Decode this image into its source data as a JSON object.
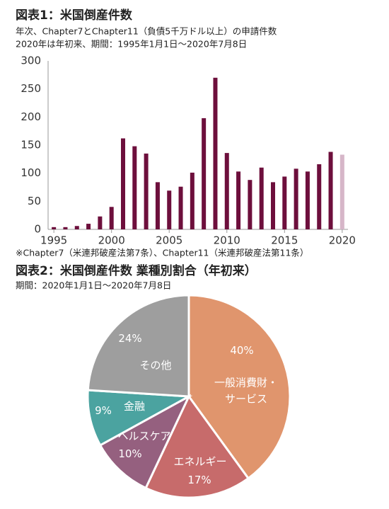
{
  "chart_data": [
    {
      "type": "bar",
      "title": "図表1：米国倒産件数",
      "subtitle": [
        "年次、Chapter7とChapter11（負債5千万ドル以上）の申請件数",
        "2020年は年初来、期間：1995年1月1日～2020年7月8日"
      ],
      "note": "※Chapter7（米連邦破産法第7条）、Chapter11（米連邦破産法第11条）",
      "x": [
        1995,
        1996,
        1997,
        1998,
        1999,
        2000,
        2001,
        2002,
        2003,
        2004,
        2005,
        2006,
        2007,
        2008,
        2009,
        2010,
        2011,
        2012,
        2013,
        2014,
        2015,
        2016,
        2017,
        2018,
        2019,
        2020
      ],
      "values": [
        4,
        4,
        6,
        10,
        23,
        40,
        162,
        148,
        135,
        84,
        69,
        76,
        101,
        198,
        270,
        136,
        103,
        88,
        110,
        84,
        94,
        108,
        103,
        116,
        138,
        133
      ],
      "colors": [
        "#6d0f3c",
        "#6d0f3c",
        "#6d0f3c",
        "#6d0f3c",
        "#6d0f3c",
        "#6d0f3c",
        "#6d0f3c",
        "#6d0f3c",
        "#6d0f3c",
        "#6d0f3c",
        "#6d0f3c",
        "#6d0f3c",
        "#6d0f3c",
        "#6d0f3c",
        "#6d0f3c",
        "#6d0f3c",
        "#6d0f3c",
        "#6d0f3c",
        "#6d0f3c",
        "#6d0f3c",
        "#6d0f3c",
        "#6d0f3c",
        "#6d0f3c",
        "#6d0f3c",
        "#6d0f3c",
        "#d6b6c8"
      ],
      "xlim": [
        1994.5,
        2020.5
      ],
      "xticks": [
        1995,
        2000,
        2005,
        2010,
        2015,
        2020
      ],
      "ylim": [
        0,
        300
      ],
      "yticks": [
        0,
        50,
        100,
        150,
        200,
        250,
        300
      ],
      "grid": false
    },
    {
      "type": "pie",
      "title": "図表2：米国倒産件数 業種別割合（年初来）",
      "subtitle": [
        "期間：2020年1月1日～2020年7月8日"
      ],
      "categories": [
        "一般消費財・サービス",
        "エネルギー",
        "ヘルスケア",
        "金融",
        "その他"
      ],
      "values": [
        40,
        17,
        10,
        9,
        24
      ],
      "value_labels": [
        "40%",
        "17%",
        "10%",
        "9%",
        "24%"
      ],
      "colors": [
        "#e0956d",
        "#c76b6b",
        "#95607f",
        "#4ba3a0",
        "#9e9e9e"
      ]
    }
  ]
}
